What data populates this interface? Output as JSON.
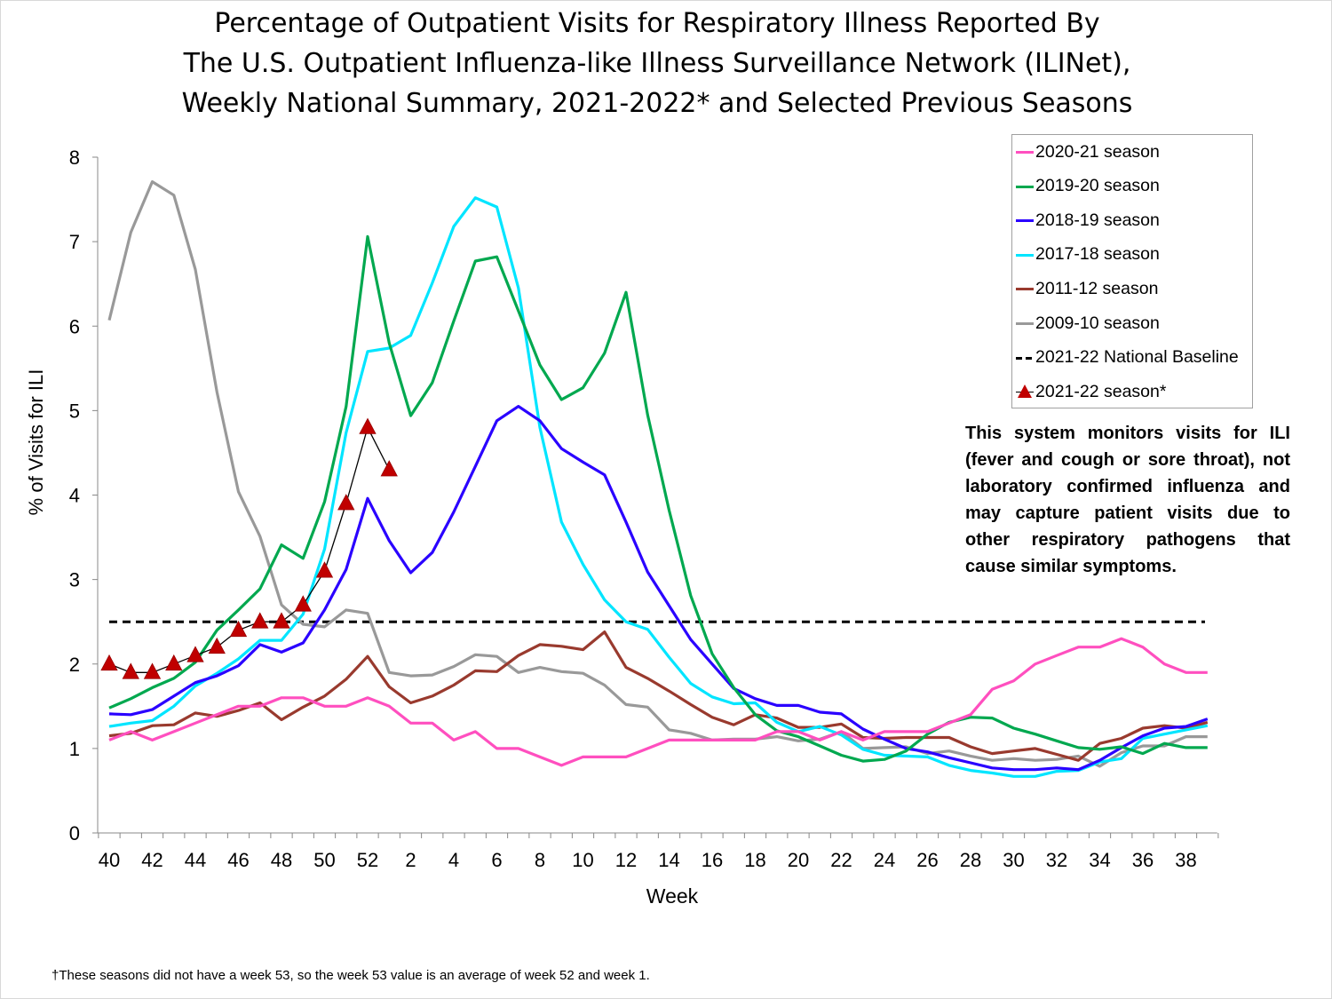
{
  "title_lines": [
    "Percentage of Outpatient Visits for Respiratory Illness Reported By",
    "The U.S. Outpatient Influenza-like Illness Surveillance Network (ILINet),",
    "Weekly National Summary, 2021-2022* and Selected Previous Seasons"
  ],
  "annotation": "This system monitors visits for ILI (fever and cough or sore throat), not laboratory confirmed influenza and may capture patient visits due to other respiratory pathogens that cause similar symptoms.",
  "footnote": "†These seasons did not have a week 53, so the week 53 value is an average of week 52 and week 1.",
  "chart_data": {
    "type": "line",
    "xlabel": "Week",
    "ylabel": "% of Visits for ILI",
    "ylim": [
      0,
      8
    ],
    "yticks": [
      "0",
      "1",
      "2",
      "3",
      "4",
      "5",
      "6",
      "7",
      "8"
    ],
    "categories": [
      "40",
      "41",
      "42",
      "43",
      "44",
      "45",
      "46",
      "47",
      "48",
      "49",
      "50",
      "51",
      "52",
      "1",
      "2",
      "3",
      "4",
      "5",
      "6",
      "7",
      "8",
      "9",
      "10",
      "11",
      "12",
      "13",
      "14",
      "15",
      "16",
      "17",
      "18",
      "19",
      "20",
      "21",
      "22",
      "23",
      "24",
      "25",
      "26",
      "27",
      "28",
      "29",
      "30",
      "31",
      "32",
      "33",
      "34",
      "35",
      "36",
      "37",
      "38",
      "39"
    ],
    "xtick_labels": [
      "40",
      "42",
      "44",
      "46",
      "48",
      "50",
      "52",
      "2",
      "4",
      "6",
      "8",
      "10",
      "12",
      "14",
      "16",
      "18",
      "20",
      "22",
      "24",
      "26",
      "28",
      "30",
      "32",
      "34",
      "36",
      "38"
    ],
    "grid": false,
    "legend_position": "top-right",
    "series": [
      {
        "name": "2020-21 season",
        "color": "#ff4fbf",
        "values": [
          1.1,
          1.2,
          1.1,
          1.2,
          1.3,
          1.4,
          1.5,
          1.5,
          1.6,
          1.6,
          1.5,
          1.5,
          1.6,
          1.5,
          1.3,
          1.3,
          1.1,
          1.2,
          1.0,
          1.0,
          0.9,
          0.8,
          0.9,
          0.9,
          0.9,
          1.0,
          1.1,
          1.1,
          1.1,
          1.1,
          1.1,
          1.2,
          1.2,
          1.1,
          1.2,
          1.1,
          1.2,
          1.2,
          1.2,
          1.3,
          1.4,
          1.7,
          1.8,
          2.0,
          2.1,
          2.2,
          2.2,
          2.3,
          2.2,
          2.0,
          1.9,
          1.9
        ]
      },
      {
        "name": "2019-20 season",
        "color": "#00a84f",
        "values": [
          1.48,
          1.59,
          1.72,
          1.83,
          2.02,
          2.4,
          2.64,
          2.89,
          3.41,
          3.25,
          3.92,
          5.05,
          7.06,
          5.8,
          4.94,
          5.33,
          6.06,
          6.77,
          6.82,
          6.18,
          5.54,
          5.13,
          5.27,
          5.68,
          6.4,
          4.95,
          3.82,
          2.81,
          2.12,
          1.72,
          1.4,
          1.21,
          1.14,
          1.03,
          0.92,
          0.85,
          0.87,
          0.97,
          1.17,
          1.31,
          1.37,
          1.36,
          1.24,
          1.17,
          1.09,
          1.01,
          0.99,
          1.02,
          0.94,
          1.06,
          1.01,
          1.01
        ]
      },
      {
        "name": "2018-19 season",
        "color": "#2a00ff",
        "values": [
          1.41,
          1.4,
          1.46,
          1.62,
          1.78,
          1.86,
          1.98,
          2.23,
          2.14,
          2.25,
          2.64,
          3.12,
          3.96,
          3.46,
          3.08,
          3.32,
          3.8,
          4.34,
          4.88,
          5.05,
          4.88,
          4.55,
          4.39,
          4.24,
          3.68,
          3.09,
          2.69,
          2.29,
          2.0,
          1.71,
          1.59,
          1.51,
          1.51,
          1.43,
          1.41,
          1.23,
          1.11,
          1.0,
          0.96,
          0.89,
          0.83,
          0.77,
          0.75,
          0.75,
          0.77,
          0.75,
          0.86,
          1.01,
          1.15,
          1.24,
          1.26,
          1.35
        ]
      },
      {
        "name": "2017-18 season",
        "color": "#00e5ff",
        "values": [
          1.26,
          1.3,
          1.33,
          1.5,
          1.74,
          1.89,
          2.06,
          2.28,
          2.28,
          2.59,
          3.36,
          4.74,
          5.7,
          5.74,
          5.89,
          6.51,
          7.18,
          7.52,
          7.41,
          6.45,
          4.8,
          3.68,
          3.18,
          2.76,
          2.5,
          2.41,
          2.08,
          1.77,
          1.61,
          1.53,
          1.54,
          1.31,
          1.2,
          1.26,
          1.16,
          0.99,
          0.92,
          0.91,
          0.9,
          0.8,
          0.74,
          0.71,
          0.67,
          0.67,
          0.73,
          0.74,
          0.84,
          0.88,
          1.12,
          1.17,
          1.22,
          1.27
        ]
      },
      {
        "name": "2011-12 season",
        "color": "#993a2e",
        "values": [
          1.15,
          1.18,
          1.27,
          1.28,
          1.42,
          1.38,
          1.45,
          1.54,
          1.34,
          1.49,
          1.62,
          1.82,
          2.09,
          1.73,
          1.54,
          1.62,
          1.75,
          1.92,
          1.91,
          2.1,
          2.23,
          2.21,
          2.17,
          2.38,
          1.96,
          1.83,
          1.68,
          1.52,
          1.37,
          1.28,
          1.4,
          1.36,
          1.25,
          1.25,
          1.29,
          1.13,
          1.12,
          1.13,
          1.13,
          1.13,
          1.02,
          0.94,
          0.97,
          1.0,
          0.93,
          0.86,
          1.06,
          1.12,
          1.24,
          1.27,
          1.24,
          1.31
        ]
      },
      {
        "name": "2009-10 season",
        "color": "#999999",
        "values": [
          6.07,
          7.11,
          7.71,
          7.55,
          6.67,
          5.22,
          4.04,
          3.51,
          2.7,
          2.47,
          2.44,
          2.64,
          2.6,
          1.9,
          1.86,
          1.87,
          1.97,
          2.11,
          2.09,
          1.9,
          1.96,
          1.91,
          1.89,
          1.75,
          1.52,
          1.49,
          1.22,
          1.18,
          1.1,
          1.11,
          1.11,
          1.14,
          1.09,
          1.11,
          1.2,
          1.0,
          1.01,
          1.02,
          0.94,
          0.97,
          0.91,
          0.86,
          0.88,
          0.86,
          0.87,
          0.91,
          0.79,
          0.95,
          1.03,
          1.03,
          1.14,
          1.14
        ]
      }
    ],
    "baseline": {
      "name": "2021-22 National Baseline",
      "value": 2.5,
      "color": "#000000",
      "style": "dashed"
    },
    "current": {
      "name": "2021-22 season*",
      "color": "#c00000",
      "marker": "triangle",
      "values": [
        2.0,
        1.9,
        1.9,
        2.0,
        2.1,
        2.2,
        2.4,
        2.5,
        2.5,
        2.7,
        3.1,
        3.9,
        4.8,
        4.3
      ]
    }
  }
}
